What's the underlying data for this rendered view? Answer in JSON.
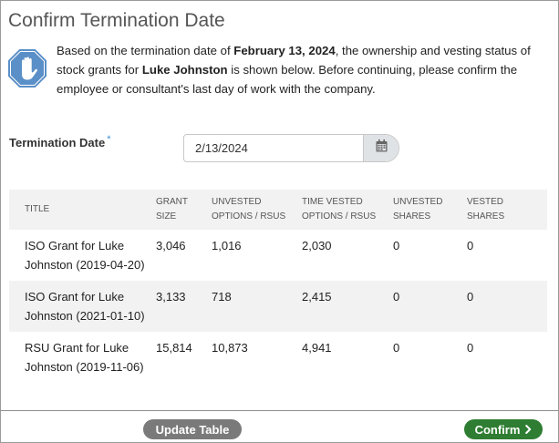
{
  "dialog": {
    "title": "Confirm Termination Date",
    "intro": {
      "part1": "Based on the termination date of ",
      "date_bold": "February 13, 2024",
      "part2": ", the ownership and vesting status of stock grants for ",
      "name_bold": "Luke Johnston",
      "part3": " is shown below. Before continuing, please confirm the employee or consultant's last day of work with the company."
    },
    "icon": "stop-hand-icon"
  },
  "termination": {
    "label": "Termination Date",
    "required_mark": "*",
    "value": "2/13/2024",
    "calendar_icon": "calendar-icon"
  },
  "table": {
    "headers": {
      "title": "TITLE",
      "grant_size": [
        "GRANT",
        "SIZE"
      ],
      "unvested": [
        "UNVESTED",
        "OPTIONS / RSUS"
      ],
      "time_vested": [
        "TIME VESTED",
        "OPTIONS / RSUS"
      ],
      "unvested_shares": [
        "UNVESTED",
        "SHARES"
      ],
      "vested_shares": [
        "VESTED",
        "SHARES"
      ]
    },
    "rows": [
      {
        "title": "ISO Grant for Luke Johnston (2019-04-20)",
        "grant_size": "3,046",
        "unvested": "1,016",
        "time_vested": "2,030",
        "unvested_shares": "0",
        "vested_shares": "0"
      },
      {
        "title": "ISO Grant for Luke Johnston (2021-01-10)",
        "grant_size": "3,133",
        "unvested": "718",
        "time_vested": "2,415",
        "unvested_shares": "0",
        "vested_shares": "0"
      },
      {
        "title": "RSU Grant for Luke Johnston (2019-11-06)",
        "grant_size": "15,814",
        "unvested": "10,873",
        "time_vested": "4,941",
        "unvested_shares": "0",
        "vested_shares": "0"
      }
    ]
  },
  "footer": {
    "update_label": "Update Table",
    "confirm_label": "Confirm",
    "confirm_icon": "chevron-right-icon"
  },
  "colors": {
    "confirm": "#2e7d32",
    "update": "#7a7a7a",
    "stop_icon": "#5b8fc7",
    "required": "#3a8fd6"
  }
}
